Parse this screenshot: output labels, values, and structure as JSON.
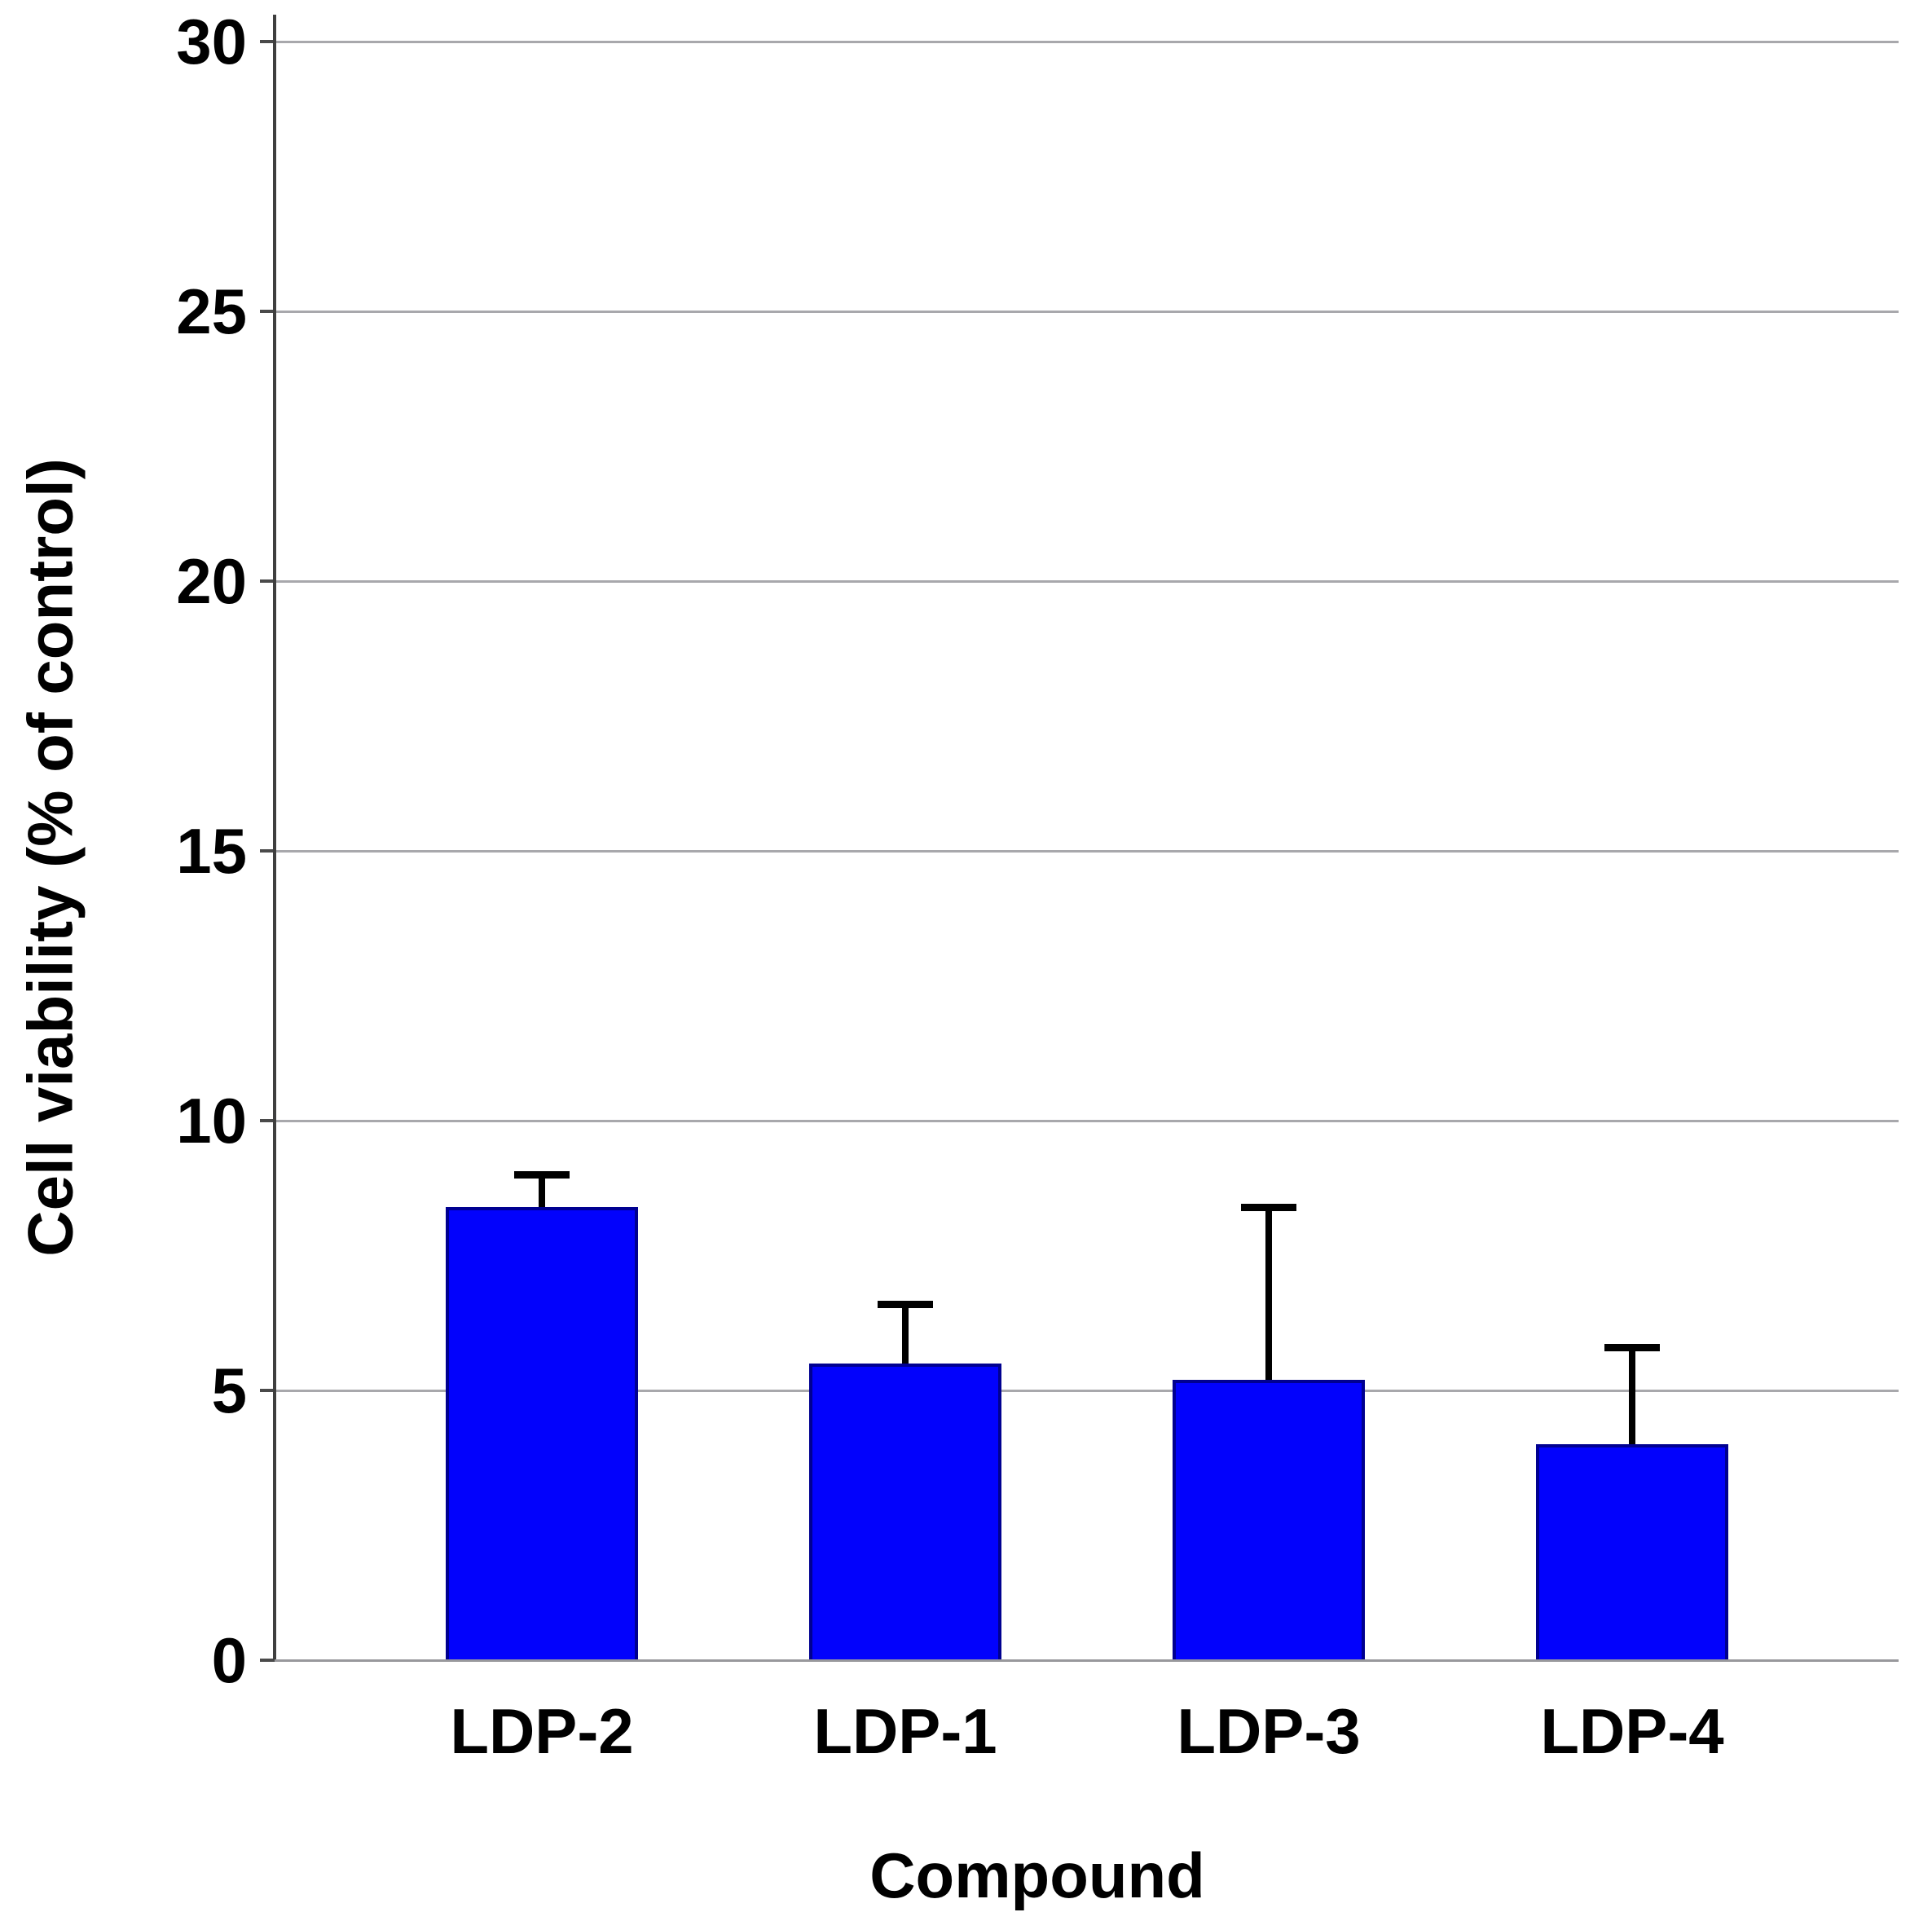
{
  "chart_data": {
    "type": "bar",
    "title": "",
    "xlabel": "Compound",
    "ylabel": "Cell viability (% of control)",
    "categories": [
      "LDP-2",
      "LDP-1",
      "LDP-3",
      "LDP-4"
    ],
    "values": [
      8.4,
      5.5,
      5.2,
      4.0
    ],
    "errors_upper": [
      0.6,
      1.1,
      3.2,
      1.8
    ],
    "ylim": [
      0,
      30
    ],
    "yticks": [
      0,
      5,
      10,
      15,
      20,
      25,
      30
    ],
    "grid": true,
    "legend": "none",
    "bar_color": "#0202fc",
    "bar_border_color": "#000090",
    "error_color": "#000000",
    "gridline_color": "#a8a8ac",
    "axis_color": "#3f3f3f",
    "text_color": "#000000",
    "background_color": "#ffffff"
  }
}
